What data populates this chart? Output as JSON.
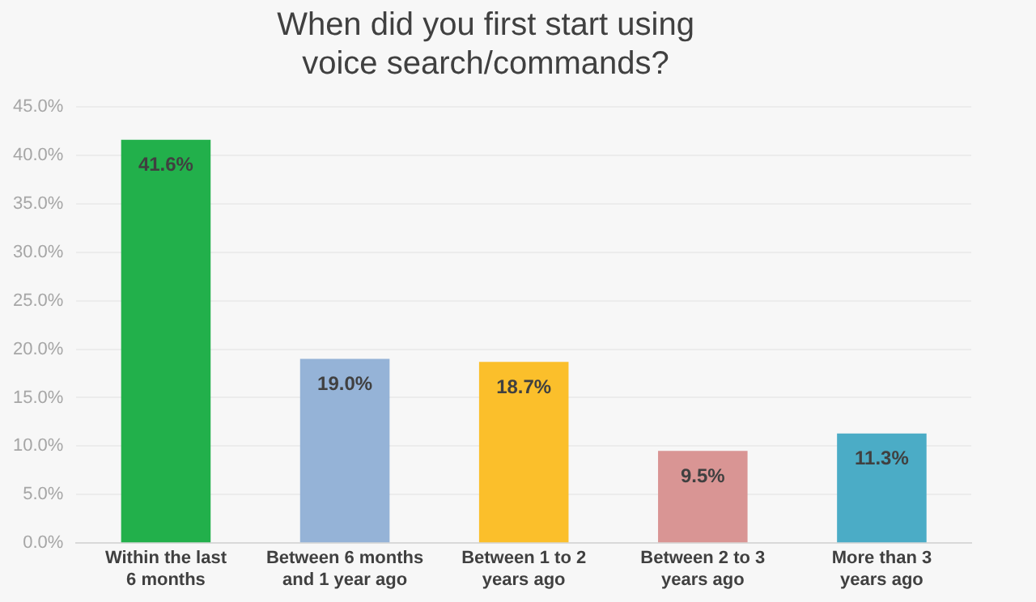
{
  "chart_data": {
    "type": "bar",
    "title": "When did you first start using voice search/commands?",
    "categories": [
      "Within the last 6 months",
      "Between 6 months and 1 year ago",
      "Between 1 to 2 years ago",
      "Between 2 to 3 years ago",
      "More than 3 years ago"
    ],
    "values": [
      41.6,
      19.0,
      18.7,
      9.5,
      11.3
    ],
    "colors": [
      "#22b04b",
      "#95b3d7",
      "#fbbf2b",
      "#d99594",
      "#4bacc6"
    ],
    "value_labels": [
      "41.6%",
      "19.0%",
      "18.7%",
      "9.5%",
      "11.3%"
    ],
    "ylim": [
      0,
      45
    ],
    "yticks": [
      {
        "value": 0,
        "label": "0.0%"
      },
      {
        "value": 5,
        "label": "5.0%"
      },
      {
        "value": 10,
        "label": "10.0%"
      },
      {
        "value": 15,
        "label": "15.0%"
      },
      {
        "value": 20,
        "label": "20.0%"
      },
      {
        "value": 25,
        "label": "25.0%"
      },
      {
        "value": 30,
        "label": "30.0%"
      },
      {
        "value": 35,
        "label": "35.0%"
      },
      {
        "value": 40,
        "label": "40.0%"
      },
      {
        "value": 45,
        "label": "45.0%"
      }
    ],
    "grid": "y"
  }
}
